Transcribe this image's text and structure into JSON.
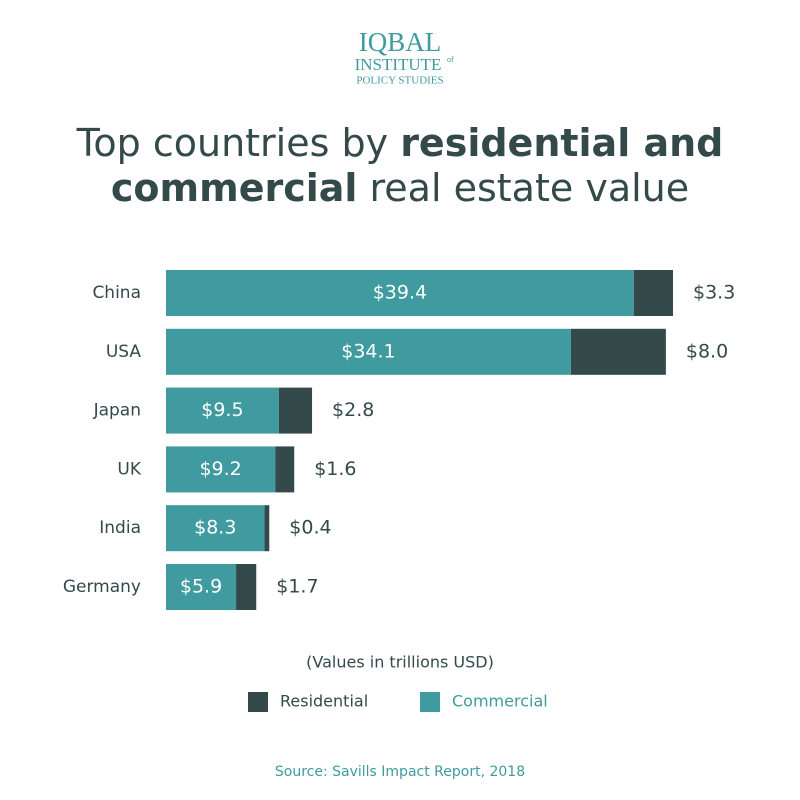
{
  "logo": {
    "name": "IQBAL",
    "line2": "INSTITUTE",
    "of": "of",
    "line3": "POLICY STUDIES"
  },
  "chart_data": {
    "type": "stacked-barh",
    "title": [
      [
        {
          "text": "Top countries by ",
          "bold": false
        },
        {
          "text": "residential and",
          "bold": true
        }
      ],
      [
        {
          "text": "commercial",
          "bold": true
        },
        {
          "text": " real estate value",
          "bold": false
        }
      ]
    ],
    "categories": [
      "China",
      "USA",
      "Japan",
      "UK",
      "India",
      "Germany"
    ],
    "series": [
      {
        "name": "Commercial",
        "color": "#3f9ba0",
        "values": [
          39.4,
          34.1,
          9.5,
          9.2,
          8.3,
          5.9
        ],
        "value_labels": [
          "$39.4",
          "$34.1",
          "$9.5",
          "$9.2",
          "$8.3",
          "$5.9"
        ]
      },
      {
        "name": "Residential",
        "color": "#344a4a",
        "values": [
          3.3,
          8.0,
          2.8,
          1.6,
          0.4,
          1.7
        ],
        "value_labels": [
          "$3.3",
          "$8.0",
          "$2.8",
          "$1.6",
          "$0.4",
          "$1.7"
        ]
      }
    ],
    "note": "(Values in trillions USD)",
    "source": "Source: Savills Impact Report, 2018"
  }
}
